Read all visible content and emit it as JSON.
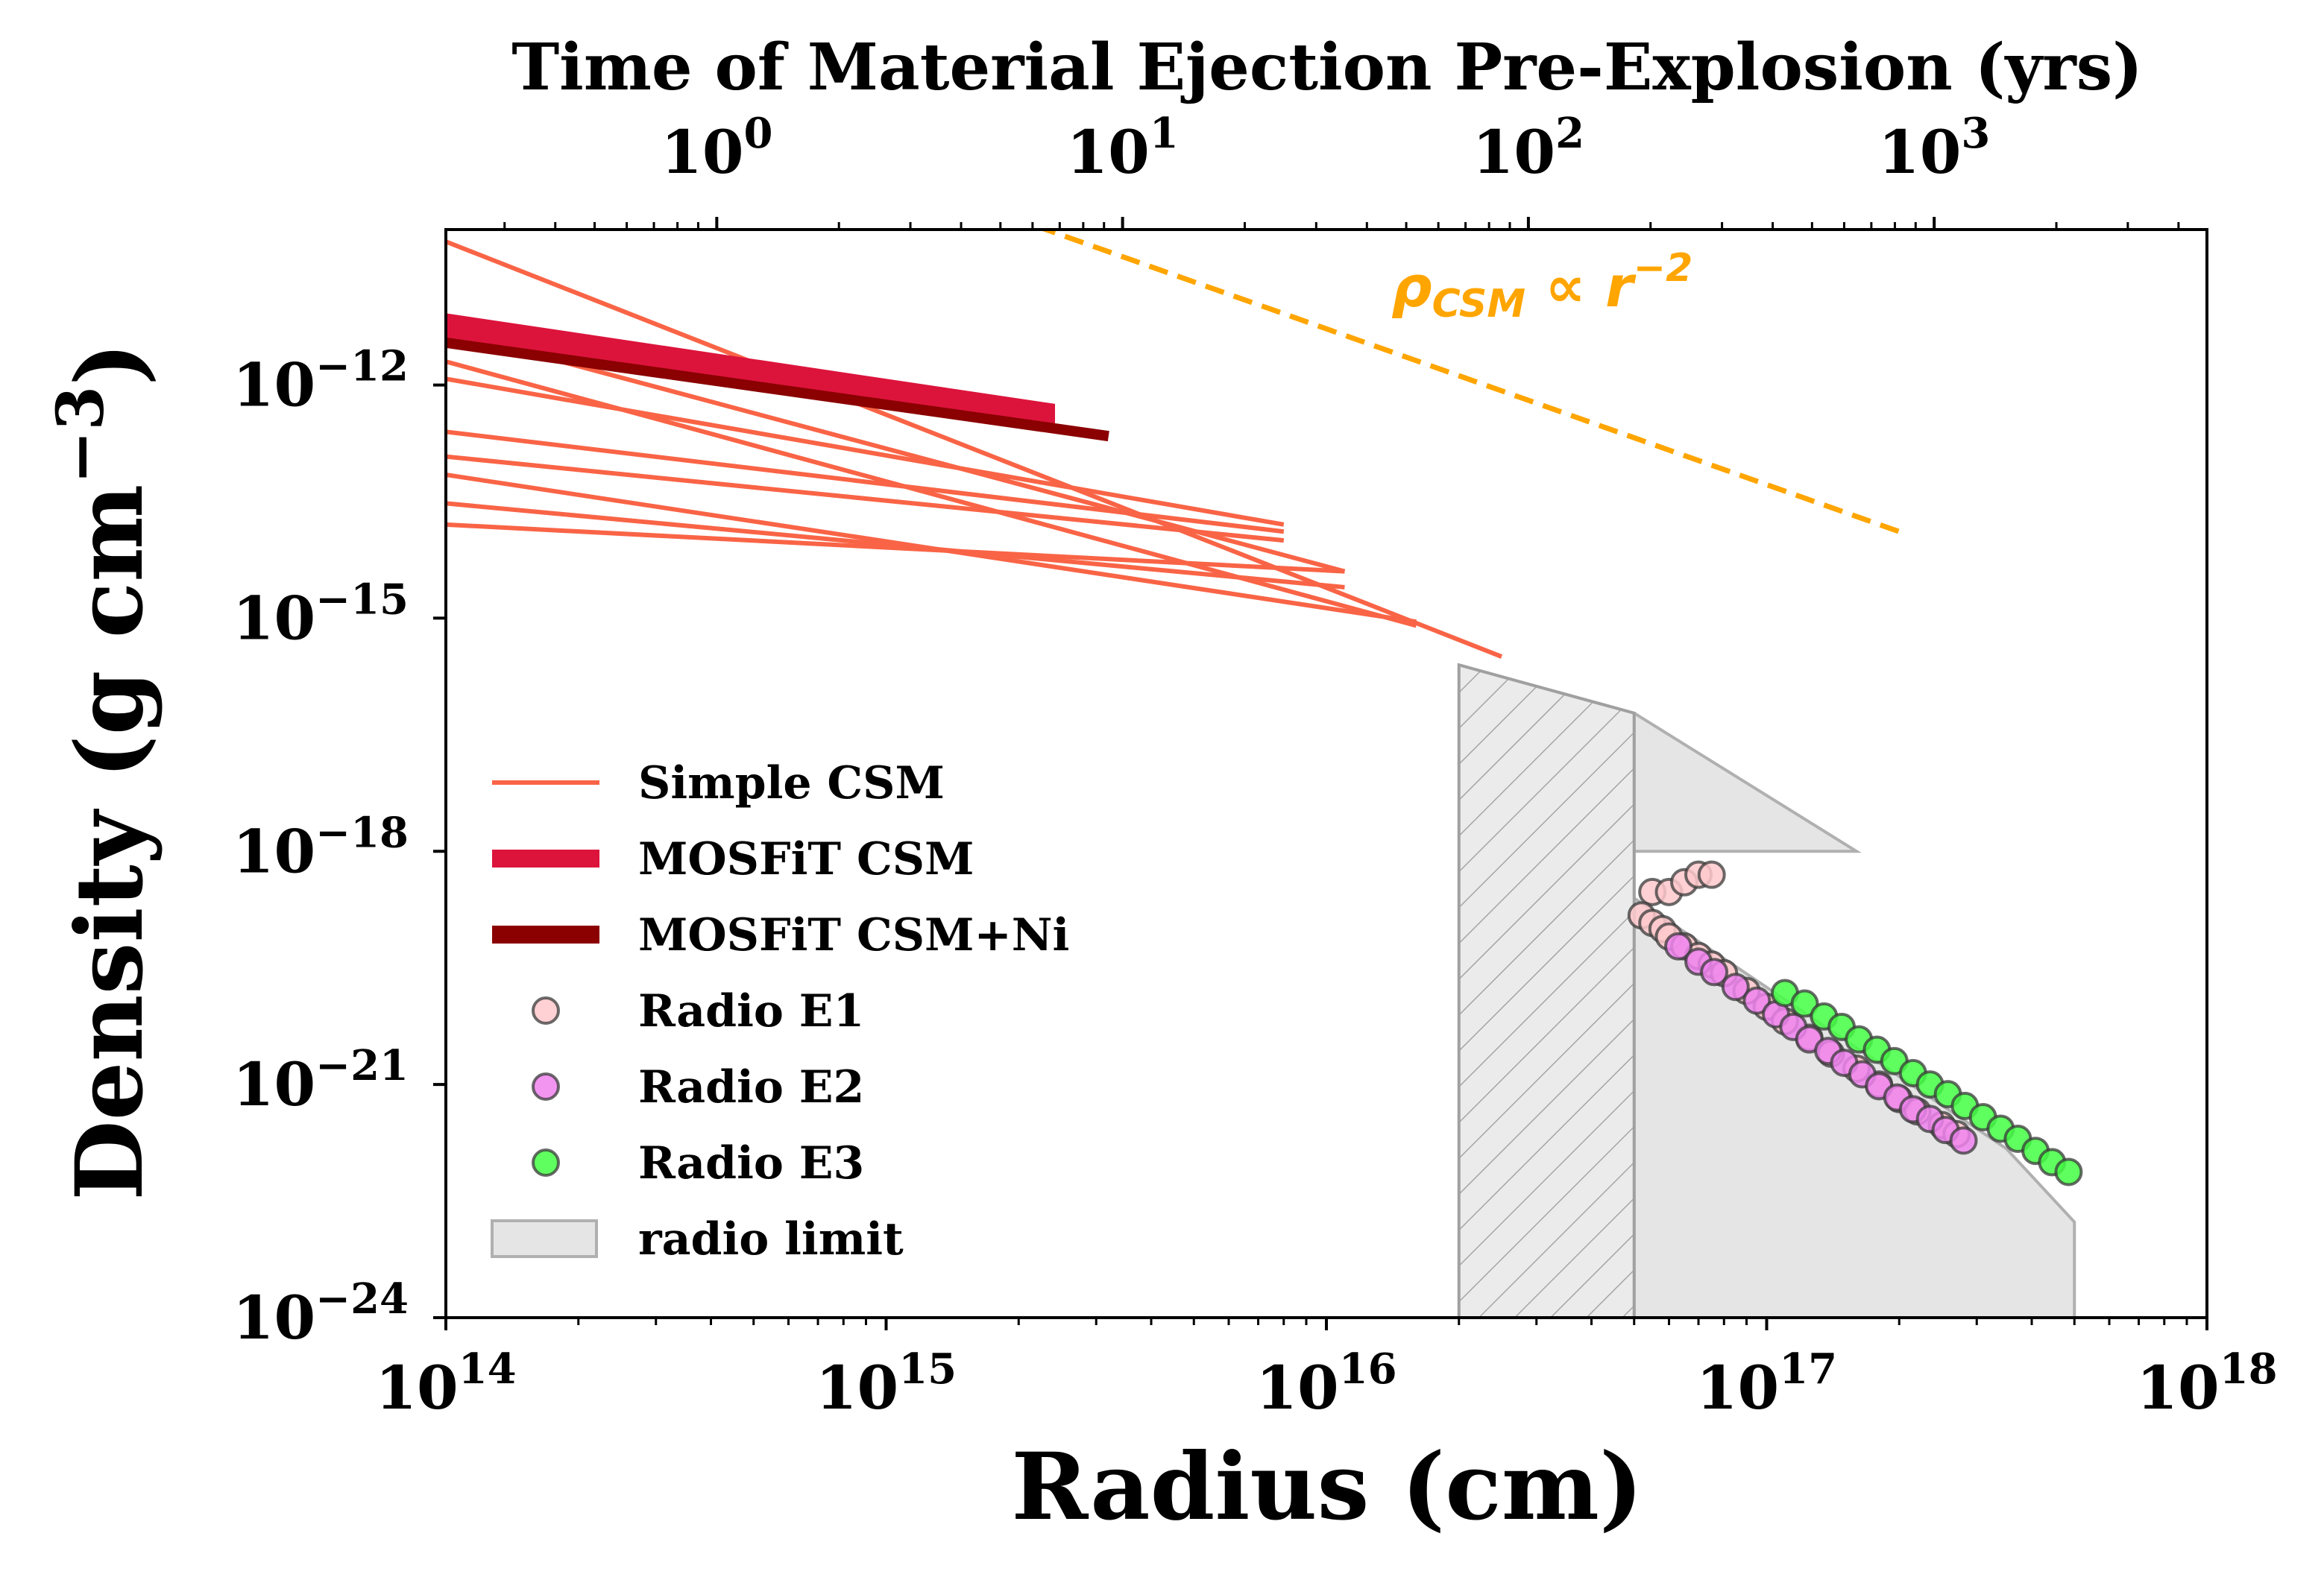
{
  "chart_data": {
    "type": "line",
    "xlabel": "Radius (cm)",
    "ylabel_main": "Density (g cm",
    "ylabel_exp": "−3",
    "ylabel_close": ")",
    "top_xlabel": "Time of Material Ejection Pre-Explosion (yrs)",
    "xscale": "log",
    "yscale": "log",
    "xlim": [
      100000000000000.0,
      1e+18
    ],
    "ylim": [
      1e-24,
      1e-10
    ],
    "top_xlim": [
      0.215,
      4700
    ],
    "x_ticks": [
      {
        "value": 100000000000000.0,
        "base": "10",
        "exp": "14"
      },
      {
        "value": 1000000000000000.0,
        "base": "10",
        "exp": "15"
      },
      {
        "value": 1e+16,
        "base": "10",
        "exp": "16"
      },
      {
        "value": 1e+17,
        "base": "10",
        "exp": "17"
      },
      {
        "value": 1e+18,
        "base": "10",
        "exp": "18"
      }
    ],
    "y_ticks": [
      {
        "value": 1e-24,
        "base": "10",
        "exp": "−24"
      },
      {
        "value": 1e-21,
        "base": "10",
        "exp": "−21"
      },
      {
        "value": 1e-18,
        "base": "10",
        "exp": "−18"
      },
      {
        "value": 1e-15,
        "base": "10",
        "exp": "−15"
      },
      {
        "value": 1e-12,
        "base": "10",
        "exp": "−12"
      }
    ],
    "top_ticks": [
      {
        "value": 1,
        "base": "10",
        "exp": "0"
      },
      {
        "value": 10,
        "base": "10",
        "exp": "1"
      },
      {
        "value": 100,
        "base": "10",
        "exp": "2"
      },
      {
        "value": 1000,
        "base": "10",
        "exp": "3"
      }
    ],
    "colors": {
      "simple_csm": "#f96446",
      "mosfit_csm": "#dc143c",
      "mosfit_csm_ni": "#8b0000",
      "reference": "#ffa500",
      "radio_e1": "#ffc9cc",
      "radio_e2": "#ee82ee",
      "radio_e3": "#44ff44",
      "radio_limit": "#e5e5e5"
    },
    "series": [
      {
        "name": "Simple CSM",
        "kind": "lines",
        "segments": [
          [
            [
              100000000000000.0,
              7e-11
            ],
            [
              2.5e+16,
              3.2e-16
            ]
          ],
          [
            [
              100000000000000.0,
              2e-12
            ],
            [
              1.6e+16,
              8e-16
            ]
          ],
          [
            [
              100000000000000.0,
              5e-12
            ],
            [
              1.1e+16,
              4e-15
            ]
          ],
          [
            [
              100000000000000.0,
              1.2e-12
            ],
            [
              8000000000000000.0,
              1.6e-14
            ]
          ],
          [
            [
              100000000000000.0,
              1.6e-14
            ],
            [
              1.1e+16,
              4e-15
            ]
          ],
          [
            [
              100000000000000.0,
              7e-14
            ],
            [
              1.6e+16,
              9e-16
            ]
          ],
          [
            [
              100000000000000.0,
              3e-14
            ],
            [
              1.1e+16,
              2.5e-15
            ]
          ],
          [
            [
              100000000000000.0,
              1.2e-13
            ],
            [
              8000000000000000.0,
              1e-14
            ]
          ],
          [
            [
              100000000000000.0,
              2.5e-13
            ],
            [
              8000000000000000.0,
              1.3e-14
            ]
          ]
        ]
      },
      {
        "name": "MOSFiT CSM",
        "kind": "band",
        "segments": [
          [
            [
              100000000000000.0,
              8e-12
            ],
            [
              2400000000000000.0,
              5.5e-13
            ]
          ],
          [
            [
              100000000000000.0,
              3.5e-12
            ],
            [
              2400000000000000.0,
              3e-13
            ]
          ]
        ]
      },
      {
        "name": "MOSFiT CSM+Ni",
        "kind": "lines",
        "segments": [
          [
            [
              100000000000000.0,
              3.5e-12
            ],
            [
              3200000000000000.0,
              2.2e-13
            ]
          ]
        ]
      },
      {
        "name": "ρ_CSM ∝ r^−2",
        "kind": "dashed",
        "segments": [
          [
            [
              2200000000000000.0,
              1.1e-10
            ],
            [
              2e+17,
              1.3e-14
            ]
          ]
        ]
      },
      {
        "name": "Radio E1",
        "kind": "points",
        "points": [
          [
            5.5e+16,
            3e-19
          ],
          [
            6e+16,
            3e-19
          ],
          [
            6.5e+16,
            4e-19
          ],
          [
            7e+16,
            5e-19
          ],
          [
            7.5e+16,
            5e-19
          ],
          [
            5.2e+16,
            1.5e-19
          ],
          [
            5.5e+16,
            1.2e-19
          ],
          [
            5.8e+16,
            1e-19
          ],
          [
            6e+16,
            8e-20
          ],
          [
            6.5e+16,
            6e-20
          ],
          [
            7e+16,
            4.5e-20
          ],
          [
            7.5e+16,
            3.5e-20
          ],
          [
            8e+16,
            2.7e-20
          ],
          [
            9e+16,
            1.6e-20
          ],
          [
            1e+17,
            1e-20
          ],
          [
            1.1e+17,
            6.5e-21
          ],
          [
            1.25e+17,
            4e-21
          ],
          [
            1.4e+17,
            2.5e-21
          ],
          [
            1.6e+17,
            1.6e-21
          ],
          [
            1.8e+17,
            1e-21
          ],
          [
            2e+17,
            6.5e-22
          ],
          [
            2.2e+17,
            4.5e-22
          ],
          [
            2.5e+17,
            3e-22
          ],
          [
            2.7e+17,
            2.3e-22
          ]
        ]
      },
      {
        "name": "Radio E2",
        "kind": "points",
        "points": [
          [
            6.3e+16,
            6e-20
          ],
          [
            7e+16,
            3.8e-20
          ],
          [
            7.6e+16,
            2.8e-20
          ],
          [
            8.5e+16,
            1.8e-20
          ],
          [
            9.5e+16,
            1.2e-20
          ],
          [
            1.05e+17,
            8e-21
          ],
          [
            1.15e+17,
            5.5e-21
          ],
          [
            1.25e+17,
            3.8e-21
          ],
          [
            1.38e+17,
            2.7e-21
          ],
          [
            1.5e+17,
            1.9e-21
          ],
          [
            1.65e+17,
            1.35e-21
          ],
          [
            1.8e+17,
            9.5e-22
          ],
          [
            1.98e+17,
            6.8e-22
          ],
          [
            2.15e+17,
            4.8e-22
          ],
          [
            2.35e+17,
            3.6e-22
          ],
          [
            2.55e+17,
            2.6e-22
          ],
          [
            2.8e+17,
            1.9e-22
          ]
        ]
      },
      {
        "name": "Radio E3",
        "kind": "points",
        "points": [
          [
            1.1e+17,
            1.5e-20
          ],
          [
            1.22e+17,
            1.1e-20
          ],
          [
            1.35e+17,
            7.5e-21
          ],
          [
            1.48e+17,
            5.5e-21
          ],
          [
            1.62e+17,
            3.8e-21
          ],
          [
            1.78e+17,
            2.8e-21
          ],
          [
            1.95e+17,
            2e-21
          ],
          [
            2.15e+17,
            1.4e-21
          ],
          [
            2.35e+17,
            1e-21
          ],
          [
            2.58e+17,
            7.5e-22
          ],
          [
            2.82e+17,
            5.3e-22
          ],
          [
            3.1e+17,
            3.8e-22
          ],
          [
            3.4e+17,
            2.7e-22
          ],
          [
            3.72e+17,
            2e-22
          ],
          [
            4.08e+17,
            1.4e-22
          ],
          [
            4.45e+17,
            1e-22
          ],
          [
            4.85e+17,
            7.5e-23
          ]
        ]
      },
      {
        "name": "radio limit",
        "kind": "region",
        "polygon": [
          [
            2e+16,
            2.5e-16
          ],
          [
            5e+16,
            6e-17
          ],
          [
            5e+16,
            1e-24
          ],
          [
            5e+17,
            1e-24
          ],
          [
            5e+17,
            1.7e-23
          ],
          [
            3.5e+17,
            1.5e-22
          ],
          [
            5e+16,
            2.5e-19
          ],
          [
            5e+16,
            1e-18
          ],
          [
            1.6e+17,
            1e-18
          ],
          [
            5e+16,
            6e-17
          ],
          [
            2e+16,
            2.5e-16
          ]
        ],
        "hatched_box": {
          "x": [
            2e+16,
            5e+16
          ],
          "y": [
            1e-24,
            2.5e-16
          ]
        }
      }
    ],
    "annotation": {
      "text_main": "ρ",
      "text_sub": "CSM",
      "text_mid": " ∝ r",
      "text_sup": "−2",
      "x": 5.5e+16,
      "y": 1.6e-11
    },
    "legend": {
      "placement": "lower-left",
      "entries": [
        {
          "label": "Simple CSM",
          "kind": "line",
          "color": "#f96446"
        },
        {
          "label": "MOSFiT CSM",
          "kind": "thick",
          "color": "#dc143c"
        },
        {
          "label": "MOSFiT CSM+Ni",
          "kind": "thick",
          "color": "#8b0000"
        },
        {
          "label": "Radio E1",
          "kind": "marker",
          "color": "#ffc9cc"
        },
        {
          "label": "Radio E2",
          "kind": "marker",
          "color": "#ee82ee"
        },
        {
          "label": "Radio E3",
          "kind": "marker",
          "color": "#44ff44"
        },
        {
          "label": "radio limit",
          "kind": "patch",
          "color": "#e5e5e5"
        }
      ]
    },
    "grid": false
  }
}
